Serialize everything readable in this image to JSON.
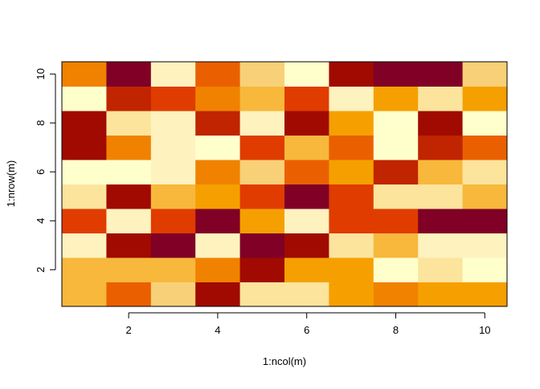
{
  "chart_data": {
    "type": "heatmap",
    "x_label": "1:ncol(m)",
    "y_label": "1:nrow(m)",
    "x": [
      1,
      2,
      3,
      4,
      5,
      6,
      7,
      8,
      9,
      10
    ],
    "y": [
      1,
      2,
      3,
      4,
      5,
      6,
      7,
      8,
      9,
      10
    ],
    "z": [
      [
        8,
        5,
        9,
        2,
        10,
        10,
        7,
        6,
        7,
        7
      ],
      [
        8,
        8,
        8,
        6,
        2,
        7,
        7,
        12,
        10,
        12
      ],
      [
        11,
        2,
        1,
        11,
        1,
        2,
        10,
        8,
        11,
        11
      ],
      [
        4,
        11,
        4,
        1,
        7,
        11,
        4,
        4,
        1,
        1
      ],
      [
        10,
        2,
        8,
        7,
        4,
        1,
        4,
        10,
        10,
        8
      ],
      [
        12,
        12,
        11,
        6,
        9,
        5,
        7,
        3,
        8,
        10
      ],
      [
        2,
        6,
        11,
        12,
        4,
        8,
        5,
        12,
        3,
        5
      ],
      [
        2,
        10,
        11,
        3,
        11,
        2,
        7,
        12,
        2,
        12
      ],
      [
        12,
        3,
        4,
        6,
        8,
        4,
        11,
        7,
        10,
        7
      ],
      [
        6,
        1,
        11,
        5,
        9,
        12,
        2,
        1,
        1,
        9
      ]
    ],
    "zlim": [
      1,
      12
    ],
    "colors": [
      "#800026",
      "#a00a00",
      "#c02400",
      "#e03c00",
      "#ea6000",
      "#f08200",
      "#f5a000",
      "#f7b83c",
      "#f8d078",
      "#fce49c",
      "#fef2be",
      "#ffffcc"
    ],
    "xlim": [
      0.5,
      10.5
    ],
    "ylim": [
      0.5,
      10.5
    ],
    "xticks": [
      2,
      4,
      6,
      8,
      10
    ],
    "yticks": [
      2,
      4,
      6,
      8,
      10
    ]
  }
}
